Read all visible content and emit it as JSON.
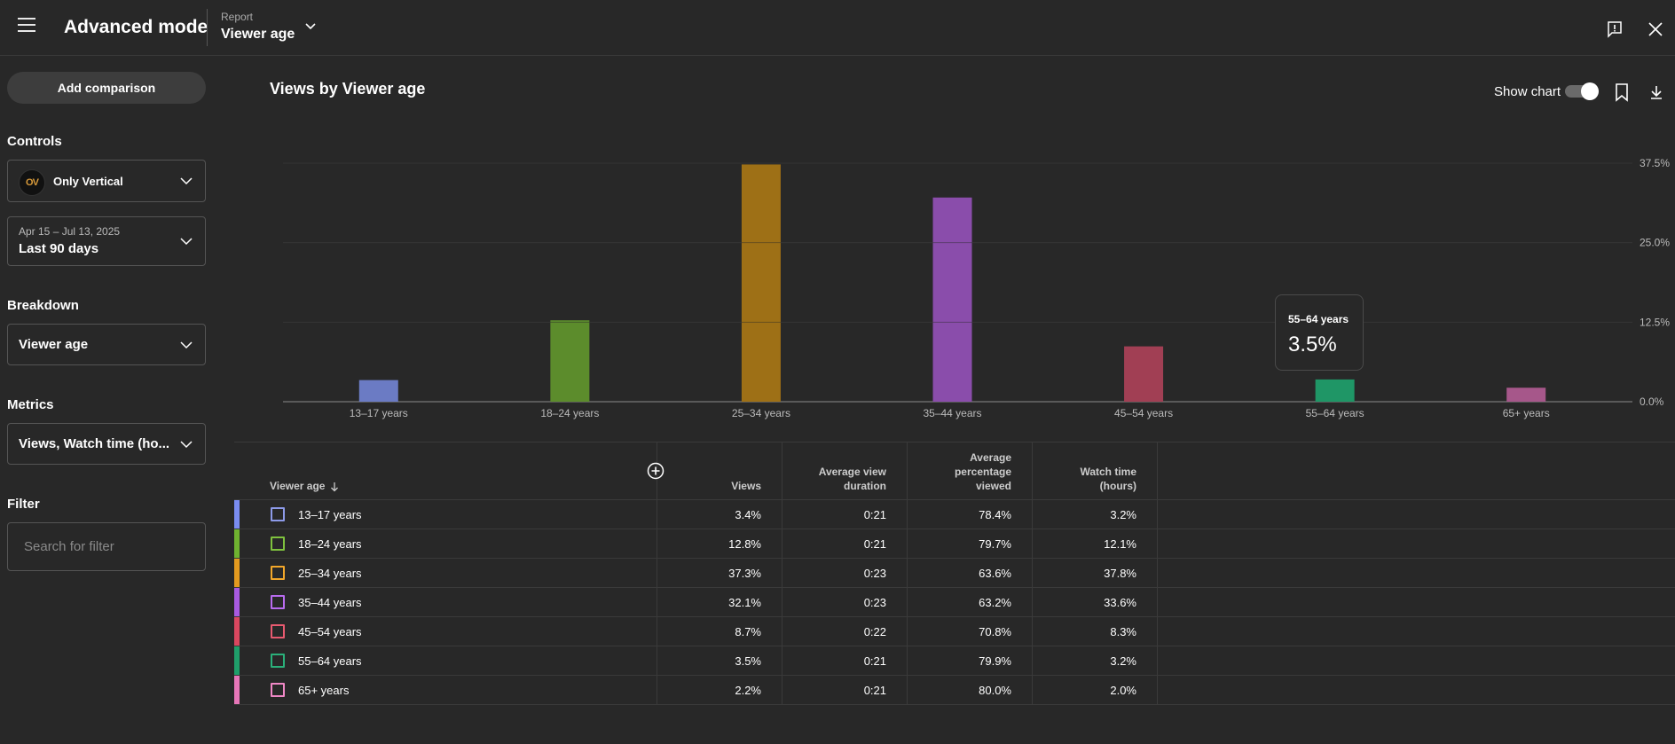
{
  "header": {
    "app_title": "Advanced mode",
    "report_label": "Report",
    "report_value": "Viewer age"
  },
  "sidebar": {
    "add_comparison": "Add comparison",
    "controls_label": "Controls",
    "channel_name": "Only Vertical",
    "channel_avatar_text": "OV",
    "date_range": "Apr 15 – Jul 13, 2025",
    "date_preset": "Last 90 days",
    "breakdown_label": "Breakdown",
    "breakdown_value": "Viewer age",
    "metrics_label": "Metrics",
    "metrics_value": "Views, Watch time (ho...",
    "filter_label": "Filter",
    "filter_placeholder": "Search for filter"
  },
  "chart_header": {
    "title": "Views by Viewer age",
    "show_chart_label": "Show chart",
    "show_chart_on": true
  },
  "chart_data": {
    "type": "bar",
    "title": "Views by Viewer age",
    "categories": [
      "13–17 years",
      "18–24 years",
      "25–34 years",
      "35–44 years",
      "45–54 years",
      "55–64 years",
      "65+ years"
    ],
    "values": [
      3.4,
      12.8,
      37.3,
      32.1,
      8.7,
      3.5,
      2.2
    ],
    "colors": [
      "#6b7bc4",
      "#5c8c2c",
      "#9e7016",
      "#8a4dab",
      "#a13f54",
      "#1f9666",
      "#a6578a"
    ],
    "yticks": [
      "0.0%",
      "12.5%",
      "25.0%",
      "37.5%"
    ],
    "ytick_values": [
      0,
      12.5,
      25,
      37.5
    ],
    "ylim": [
      0,
      37.5
    ],
    "grid": true,
    "tooltip": {
      "label": "55–64 years",
      "value": "3.5%"
    }
  },
  "table": {
    "headers": {
      "dimension": "Viewer age",
      "views": "Views",
      "avd_line1": "Average view",
      "avd_line2": "duration",
      "apv_line1": "Average",
      "apv_line2": "percentage",
      "apv_line3": "viewed",
      "wt_line1": "Watch time",
      "wt_line2": "(hours)"
    },
    "rows": [
      {
        "label": "13–17 years",
        "views": "3.4%",
        "avd": "0:21",
        "apv": "78.4%",
        "wt": "3.2%",
        "bar": "#7a8cf0",
        "box": "#8d9ae8"
      },
      {
        "label": "18–24 years",
        "views": "12.8%",
        "avd": "0:21",
        "apv": "79.7%",
        "wt": "12.1%",
        "bar": "#6fb230",
        "box": "#7fc23e"
      },
      {
        "label": "25–34 years",
        "views": "37.3%",
        "avd": "0:23",
        "apv": "63.6%",
        "wt": "37.8%",
        "bar": "#e39a1f",
        "box": "#f2a72a"
      },
      {
        "label": "35–44 years",
        "views": "32.1%",
        "avd": "0:23",
        "apv": "63.2%",
        "wt": "33.6%",
        "bar": "#a85ae0",
        "box": "#b96cf0"
      },
      {
        "label": "45–54 years",
        "views": "8.7%",
        "avd": "0:22",
        "apv": "70.8%",
        "wt": "8.3%",
        "bar": "#d9475f",
        "box": "#e85a70"
      },
      {
        "label": "55–64 years",
        "views": "3.5%",
        "avd": "0:21",
        "apv": "79.9%",
        "wt": "3.2%",
        "bar": "#1f9e6a",
        "box": "#2bb07a"
      },
      {
        "label": "65+ years",
        "views": "2.2%",
        "avd": "0:21",
        "apv": "80.0%",
        "wt": "2.0%",
        "bar": "#e676b8",
        "box": "#f088c6"
      }
    ]
  }
}
